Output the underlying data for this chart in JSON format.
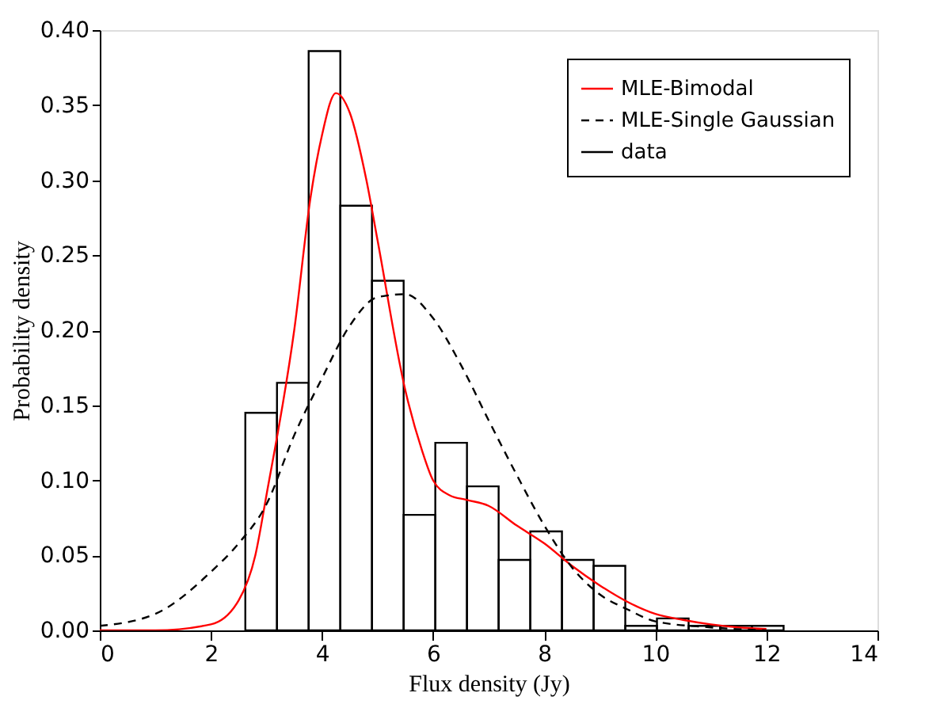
{
  "chart_data": {
    "type": "histogram",
    "xlabel": "Flux density (Jy)",
    "ylabel": "Probability density",
    "xlim": [
      0,
      14
    ],
    "ylim": [
      0,
      0.4
    ],
    "xticks": [
      0,
      2,
      4,
      6,
      8,
      10,
      12,
      14
    ],
    "yticks": [
      {
        "value": 0,
        "label": "0.00"
      },
      {
        "value": 0.05,
        "label": "0.05"
      },
      {
        "value": 0.1,
        "label": "0.10"
      },
      {
        "value": 0.15,
        "label": "0.15"
      },
      {
        "value": 0.2,
        "label": "0.20"
      },
      {
        "value": 0.25,
        "label": "0.25"
      },
      {
        "value": 0.3,
        "label": "0.30"
      },
      {
        "value": 0.35,
        "label": "0.35"
      },
      {
        "value": 0.4,
        "label": "0.40"
      }
    ],
    "legend": "top right",
    "grid": false,
    "series": [
      {
        "name": "MLE-Bimodal",
        "type": "line",
        "color": "#ff0000",
        "line_style": "solid",
        "x": [
          0,
          1,
          2,
          2.5,
          2.8,
          3,
          3.5,
          3.8,
          4,
          4.25,
          4.5,
          4.8,
          5,
          5.5,
          5.8,
          6,
          6.3,
          6.6,
          7,
          7.5,
          8,
          8.5,
          9,
          9.5,
          10,
          10.5,
          11,
          11.5,
          12
        ],
        "values": [
          0,
          0,
          0.004,
          0.02,
          0.05,
          0.09,
          0.2,
          0.29,
          0.33,
          0.358,
          0.345,
          0.3,
          0.26,
          0.16,
          0.12,
          0.1,
          0.09,
          0.087,
          0.083,
          0.07,
          0.058,
          0.043,
          0.03,
          0.019,
          0.011,
          0.007,
          0.004,
          0.002,
          0.001
        ]
      },
      {
        "name": "MLE-Single Gaussian",
        "type": "line",
        "color": "#000000",
        "line_style": "dashed",
        "x": [
          0,
          1,
          2,
          2.5,
          3,
          3.5,
          4,
          4.5,
          5,
          5.5,
          6,
          6.5,
          7,
          7.5,
          8,
          8.5,
          9,
          9.5,
          10,
          11,
          12
        ],
        "values": [
          0.003,
          0.011,
          0.039,
          0.058,
          0.084,
          0.13,
          0.168,
          0.203,
          0.222,
          0.224,
          0.208,
          0.177,
          0.14,
          0.104,
          0.07,
          0.042,
          0.024,
          0.014,
          0.006,
          0.002,
          0
        ]
      },
      {
        "name": "data",
        "color": "#000000",
        "bins": [
          2.62,
          3.19,
          3.76,
          4.33,
          4.9,
          5.47,
          6.04,
          6.61,
          7.18,
          7.75,
          8.32,
          8.89,
          9.46,
          10.03,
          10.6,
          11.17,
          11.74,
          12.31
        ],
        "values": [
          0.145,
          0.165,
          0.386,
          0.283,
          0.233,
          0.077,
          0.125,
          0.096,
          0.047,
          0.066,
          0.047,
          0.043,
          0.003,
          0.008,
          0.003,
          0.003,
          0.003
        ]
      }
    ]
  }
}
